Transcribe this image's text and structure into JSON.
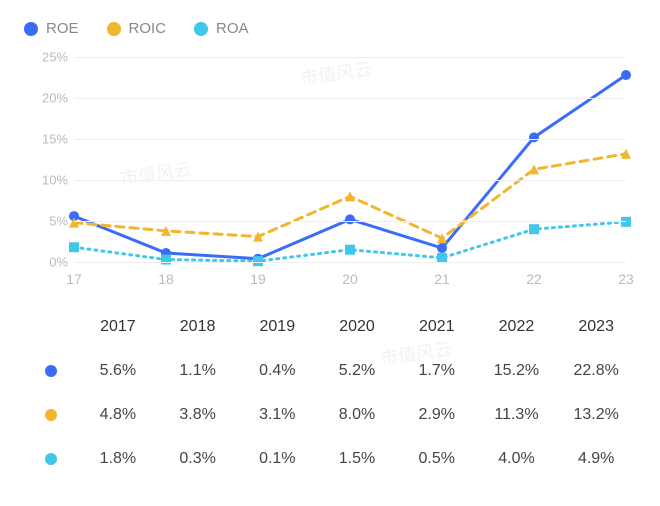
{
  "chart": {
    "type": "line",
    "categories": [
      "17",
      "18",
      "19",
      "20",
      "21",
      "22",
      "23"
    ],
    "yticks": [
      0,
      5,
      10,
      15,
      20,
      25
    ],
    "ylim": [
      0,
      25
    ],
    "y_suffix": "%",
    "grid_color": "#eeeeee",
    "axis_font_color": "#bbbbbb",
    "axis_font_size": 13,
    "background": "#ffffff",
    "marker_radius": 5,
    "line_width": 3,
    "series": [
      {
        "key": "roe",
        "label": "ROE",
        "color": "#3b6cf6",
        "dash": "none",
        "marker": "circle",
        "values": [
          5.6,
          1.1,
          0.4,
          5.2,
          1.7,
          15.2,
          22.8
        ]
      },
      {
        "key": "roic",
        "label": "ROIC",
        "color": "#f2b62e",
        "dash": "8 6",
        "marker": "triangle",
        "values": [
          4.8,
          3.8,
          3.1,
          8.0,
          2.9,
          11.3,
          13.2
        ]
      },
      {
        "key": "roa",
        "label": "ROA",
        "color": "#3fc8eb",
        "dash": "2 5",
        "marker": "square",
        "values": [
          1.8,
          0.3,
          0.1,
          1.5,
          0.5,
          4.0,
          4.9
        ]
      }
    ]
  },
  "table": {
    "header_years": [
      "2017",
      "2018",
      "2019",
      "2020",
      "2021",
      "2022",
      "2023"
    ],
    "cell_font_size": 16,
    "header_color": "#333333",
    "body_color": "#444444",
    "rows": [
      {
        "color": "#3b6cf6",
        "cells": [
          "5.6%",
          "1.1%",
          "0.4%",
          "5.2%",
          "1.7%",
          "15.2%",
          "22.8%"
        ]
      },
      {
        "color": "#f2b62e",
        "cells": [
          "4.8%",
          "3.8%",
          "3.1%",
          "8.0%",
          "2.9%",
          "11.3%",
          "13.2%"
        ]
      },
      {
        "color": "#3fc8eb",
        "cells": [
          "1.8%",
          "0.3%",
          "0.1%",
          "1.5%",
          "0.5%",
          "4.0%",
          "4.9%"
        ]
      }
    ]
  },
  "watermark": "市值风云"
}
